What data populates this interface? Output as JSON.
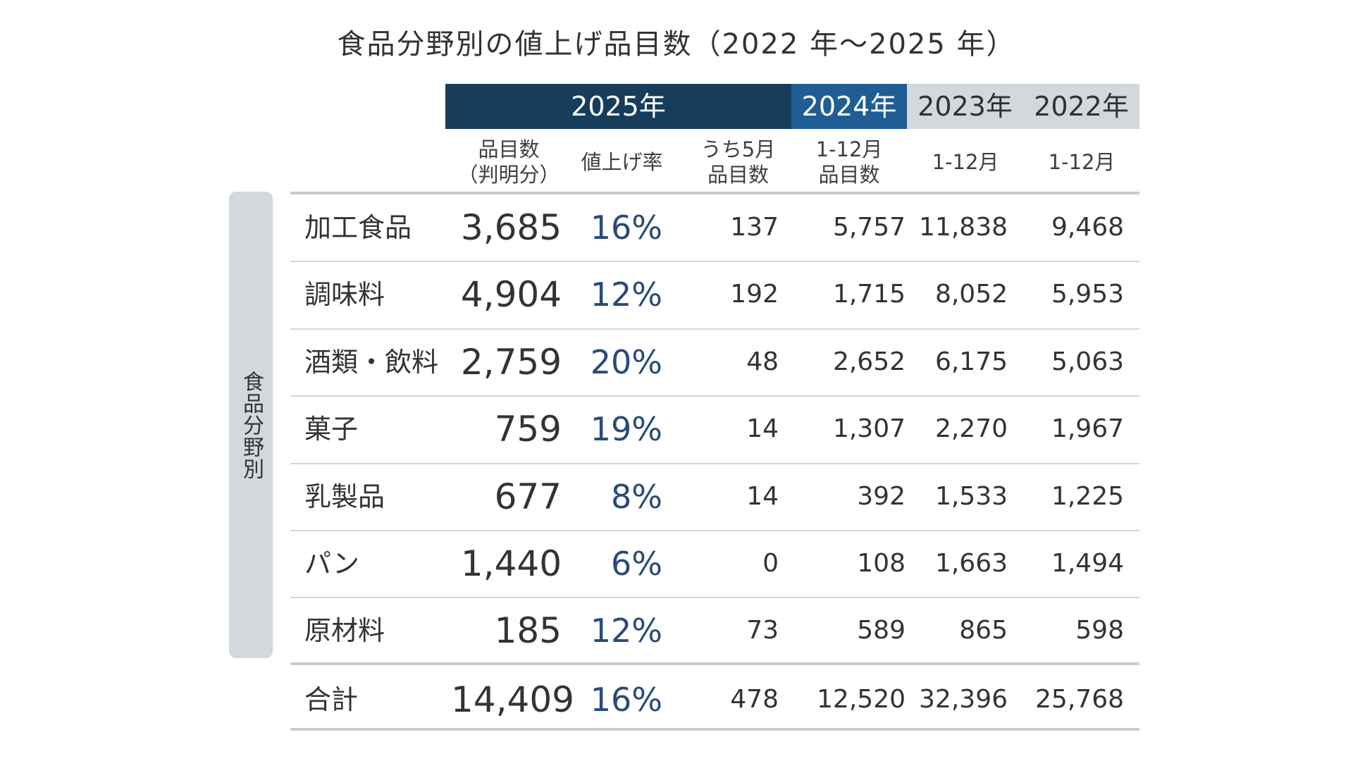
{
  "chart_data": {
    "type": "table",
    "title": "食品分野別の値上げ品目数（2022 年～2025 年）",
    "row_group_label": "食品分野別",
    "year_headers": [
      "2025年",
      "2024年",
      "2023年",
      "2022年"
    ],
    "sub_headers": [
      [
        "品目数",
        "（判明分）"
      ],
      [
        "値上げ率"
      ],
      [
        "うち5月",
        "品目数"
      ],
      [
        "1-12月",
        "品目数"
      ],
      [
        "1-12月"
      ],
      [
        "1-12月"
      ]
    ],
    "rows": [
      {
        "category": "加工食品",
        "count_2025": "3,685",
        "rate_2025": "16%",
        "may_2025": "137",
        "y2024": "5,757",
        "y2023": "11,838",
        "y2022": "9,468"
      },
      {
        "category": "調味料",
        "count_2025": "4,904",
        "rate_2025": "12%",
        "may_2025": "192",
        "y2024": "1,715",
        "y2023": "8,052",
        "y2022": "5,953"
      },
      {
        "category": "酒類・飲料",
        "count_2025": "2,759",
        "rate_2025": "20%",
        "may_2025": "48",
        "y2024": "2,652",
        "y2023": "6,175",
        "y2022": "5,063"
      },
      {
        "category": "菓子",
        "count_2025": "759",
        "rate_2025": "19%",
        "may_2025": "14",
        "y2024": "1,307",
        "y2023": "2,270",
        "y2022": "1,967"
      },
      {
        "category": "乳製品",
        "count_2025": "677",
        "rate_2025": "8%",
        "may_2025": "14",
        "y2024": "392",
        "y2023": "1,533",
        "y2022": "1,225"
      },
      {
        "category": "パン",
        "count_2025": "1,440",
        "rate_2025": "6%",
        "may_2025": "0",
        "y2024": "108",
        "y2023": "1,663",
        "y2022": "1,494"
      },
      {
        "category": "原材料",
        "count_2025": "185",
        "rate_2025": "12%",
        "may_2025": "73",
        "y2024": "589",
        "y2023": "865",
        "y2022": "598"
      }
    ],
    "total": {
      "category": "合計",
      "count_2025": "14,409",
      "rate_2025": "16%",
      "may_2025": "478",
      "y2024": "12,520",
      "y2023": "32,396",
      "y2022": "25,768"
    },
    "colors": {
      "header_2025": "#163d5c",
      "header_2024": "#1f5d94",
      "header_older": "#d3d8dc",
      "rate_text": "#2a4a78"
    }
  }
}
